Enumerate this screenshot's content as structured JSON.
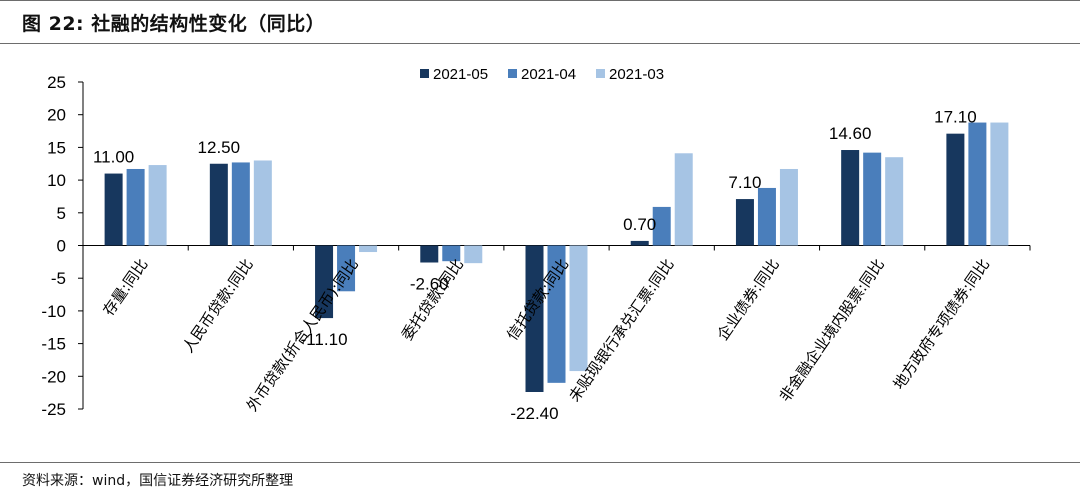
{
  "header": {
    "title": "图 22: 社融的结构性变化（同比）"
  },
  "footer": {
    "source": "资料来源：wind，国信证券经济研究所整理"
  },
  "colors": {
    "2021-05": "#17375e",
    "2021-04": "#4a7ebb",
    "2021-03": "#a6c4e4"
  },
  "chart_data": {
    "type": "bar",
    "title": "社融的结构性变化（同比）",
    "xlabel": "",
    "ylabel": "",
    "ylim": [
      -25,
      25
    ],
    "yticks": [
      25,
      20,
      15,
      10,
      5,
      0,
      -5,
      -10,
      -15,
      -20,
      -25
    ],
    "grid": false,
    "legend_position": "top-center",
    "categories": [
      "存量:同比",
      "人民币贷款:同比",
      "外币贷款(折合人民币):同比",
      "委托贷款:同比",
      "信托贷款:同比",
      "未贴现银行承兑汇票:同比",
      "企业债券:同比",
      "非金融企业境内股票:同比",
      "地方政府专项债券:同比"
    ],
    "series": [
      {
        "name": "2021-05",
        "values": [
          11.0,
          12.5,
          -11.1,
          -2.6,
          -22.4,
          0.7,
          7.1,
          14.6,
          17.1
        ]
      },
      {
        "name": "2021-04",
        "values": [
          11.7,
          12.7,
          -7.0,
          -2.4,
          -21.0,
          5.9,
          8.8,
          14.2,
          18.8
        ]
      },
      {
        "name": "2021-03",
        "values": [
          12.3,
          13.0,
          -1.0,
          -2.7,
          -19.2,
          14.1,
          11.7,
          13.5,
          18.8
        ]
      }
    ],
    "data_labels": [
      "11.00",
      "12.50",
      "-11.10",
      "-2.60",
      "-22.40",
      "0.70",
      "7.10",
      "14.60",
      "17.10"
    ]
  }
}
